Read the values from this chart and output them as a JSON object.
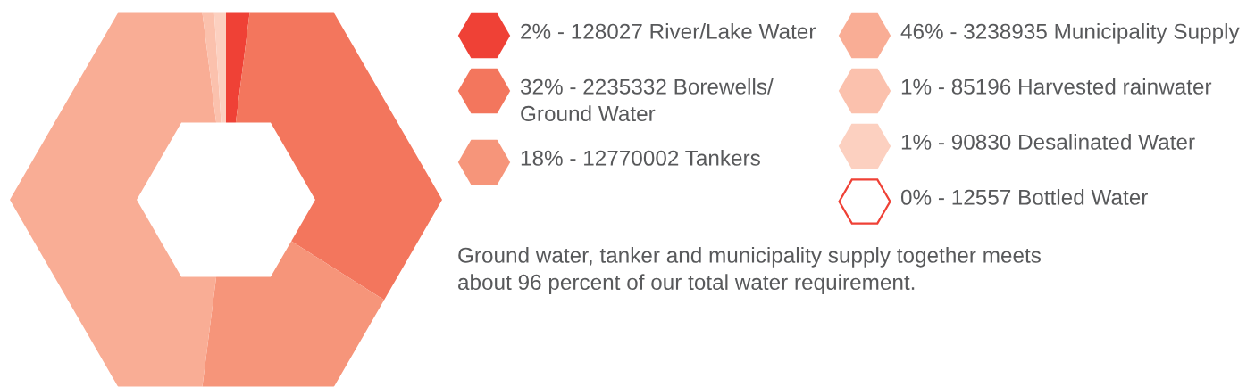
{
  "chart_data": {
    "type": "donut",
    "categories": [
      "2% - 128027 River/Lake Water",
      "32% - 2235332 Borewells/\nGround Water",
      "18% - 12770002 Tankers",
      "46% - 3238935 Municipality Supply",
      "1% - 85196 Harvested rainwater",
      "1% - 90830 Desalinated Water",
      "0% - 12557 Bottled Water"
    ],
    "values": [
      2,
      32,
      18,
      46,
      1,
      1,
      0
    ],
    "colors": [
      "#ef4136",
      "#f3765d",
      "#f6957a",
      "#f9ad95",
      "#fbc1ad",
      "#fcd0c0",
      "#ef4136"
    ],
    "legend": "right",
    "annotations": [
      "Ground water, tanker and municipality supply together meets\nabout 96 percent of our total water requirement."
    ]
  }
}
